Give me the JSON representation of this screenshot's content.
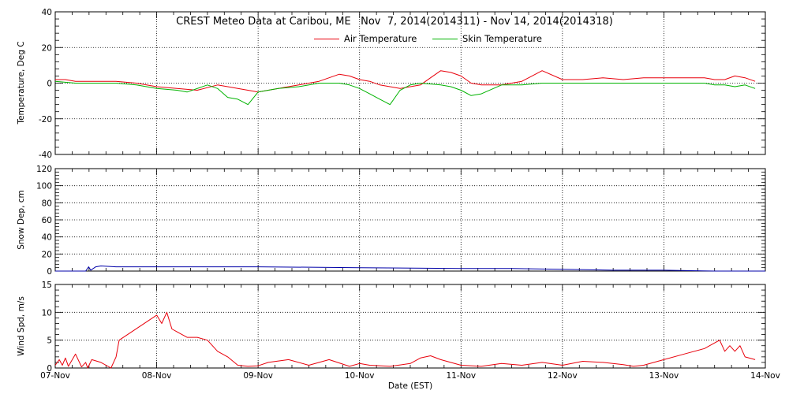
{
  "title": "CREST Meteo Data at Caribou, ME   Nov  7, 2014(2014311) - Nov 14, 2014(2014318)",
  "xlabel": "Date (EST)",
  "x_ticks": [
    "07-Nov",
    "08-Nov",
    "09-Nov",
    "10-Nov",
    "11-Nov",
    "12-Nov",
    "13-Nov",
    "14-Nov"
  ],
  "colors": {
    "air": "#e8000b",
    "skin": "#00b300",
    "snow": "#0000a8",
    "wind": "#e8000b"
  },
  "chart_data": [
    {
      "type": "line",
      "ylabel": "Temperature, Deg C",
      "xlim": [
        0,
        7
      ],
      "ylim": [
        -40,
        40
      ],
      "y_ticks": [
        "-40",
        "-20",
        "0",
        "20",
        "40"
      ],
      "y_tick_values": [
        -40,
        -20,
        0,
        20,
        40
      ],
      "legend": "top-center",
      "grid": true,
      "series": [
        {
          "name": "Air Temperature",
          "color": "#e8000b",
          "x": [
            0,
            0.1,
            0.2,
            0.4,
            0.6,
            0.8,
            1.0,
            1.2,
            1.4,
            1.6,
            1.8,
            2.0,
            2.2,
            2.4,
            2.6,
            2.8,
            2.9,
            3.0,
            3.1,
            3.2,
            3.4,
            3.6,
            3.7,
            3.8,
            3.9,
            4.0,
            4.1,
            4.2,
            4.4,
            4.6,
            4.7,
            4.8,
            5.0,
            5.2,
            5.4,
            5.6,
            5.8,
            6.0,
            6.2,
            6.4,
            6.5,
            6.6,
            6.7,
            6.8,
            6.9
          ],
          "y": [
            2,
            2,
            1,
            1,
            1,
            0,
            -2,
            -3,
            -4,
            -1,
            -3,
            -5,
            -3,
            -1,
            1,
            5,
            4,
            2,
            1,
            -1,
            -3,
            -1,
            3,
            7,
            6,
            4,
            0,
            -1,
            -1,
            1,
            4,
            7,
            2,
            2,
            3,
            2,
            3,
            3,
            3,
            3,
            2,
            2,
            4,
            3,
            1
          ]
        },
        {
          "name": "Skin Temperature",
          "color": "#00b300",
          "x": [
            0,
            0.2,
            0.4,
            0.6,
            0.8,
            1.0,
            1.2,
            1.3,
            1.5,
            1.6,
            1.7,
            1.8,
            1.9,
            2.0,
            2.2,
            2.4,
            2.6,
            2.8,
            2.9,
            3.0,
            3.1,
            3.2,
            3.3,
            3.4,
            3.5,
            3.6,
            3.8,
            3.9,
            4.0,
            4.1,
            4.2,
            4.4,
            4.6,
            4.8,
            5.0,
            5.5,
            6.0,
            6.4,
            6.5,
            6.6,
            6.7,
            6.8,
            6.9
          ],
          "y": [
            1,
            0,
            0,
            0,
            -1,
            -3,
            -4,
            -5,
            -1,
            -3,
            -8,
            -9,
            -12,
            -5,
            -3,
            -2,
            0,
            0,
            -1,
            -3,
            -6,
            -9,
            -12,
            -4,
            -1,
            0,
            -1,
            -2,
            -4,
            -7,
            -6,
            -1,
            -1,
            0,
            0,
            0,
            0,
            0,
            -1,
            -1,
            -2,
            -1,
            -3
          ]
        }
      ]
    },
    {
      "type": "line",
      "ylabel": "Snow Dep, cm",
      "xlim": [
        0,
        7
      ],
      "ylim": [
        0,
        120
      ],
      "y_ticks": [
        "0",
        "20",
        "40",
        "60",
        "80",
        "100",
        "120"
      ],
      "y_tick_values": [
        0,
        20,
        40,
        60,
        80,
        100,
        120
      ],
      "grid": true,
      "series": [
        {
          "name": "Snow Depth",
          "color": "#0000a8",
          "x": [
            0,
            0.3,
            0.33,
            0.35,
            0.4,
            0.45,
            0.6,
            1.0,
            2.0,
            3.0,
            4.0,
            4.5,
            5.0,
            5.5,
            6.0,
            6.5,
            7.0
          ],
          "y": [
            0,
            0,
            5,
            1,
            5,
            6,
            5,
            5,
            5,
            4,
            3,
            3,
            2,
            1,
            1,
            0,
            0
          ]
        }
      ]
    },
    {
      "type": "line",
      "ylabel": "Wind Spd, m/s",
      "xlim": [
        0,
        7
      ],
      "ylim": [
        0,
        15
      ],
      "y_ticks": [
        "0",
        "5",
        "10",
        "15"
      ],
      "y_tick_values": [
        0,
        5,
        10,
        15
      ],
      "grid": true,
      "series": [
        {
          "name": "Wind Speed",
          "color": "#e8000b",
          "x": [
            0,
            0.04,
            0.07,
            0.1,
            0.13,
            0.2,
            0.26,
            0.3,
            0.32,
            0.36,
            0.45,
            0.55,
            0.6,
            0.63,
            1.0,
            1.05,
            1.1,
            1.15,
            1.2,
            1.3,
            1.4,
            1.5,
            1.6,
            1.7,
            1.8,
            1.9,
            2.0,
            2.1,
            2.3,
            2.5,
            2.7,
            2.9,
            3.0,
            3.1,
            3.3,
            3.5,
            3.6,
            3.7,
            3.8,
            4.0,
            4.2,
            4.4,
            4.6,
            4.8,
            5.0,
            5.2,
            5.4,
            5.6,
            5.7,
            5.8,
            6.0,
            6.2,
            6.4,
            6.5,
            6.55,
            6.6,
            6.65,
            6.7,
            6.75,
            6.8,
            6.9
          ],
          "y": [
            0.5,
            1.5,
            0.5,
            1.8,
            0.3,
            2.5,
            0.2,
            1,
            0,
            1.5,
            1,
            0,
            2,
            5,
            9.5,
            8,
            10,
            7,
            6.5,
            5.5,
            5.5,
            5,
            3,
            2,
            0.5,
            0.3,
            0.4,
            1,
            1.5,
            0.5,
            1.5,
            0.3,
            0.8,
            0.5,
            0.3,
            0.8,
            1.8,
            2.2,
            1.5,
            0.5,
            0.3,
            0.8,
            0.5,
            1,
            0.5,
            1.2,
            1,
            0.6,
            0.3,
            0.5,
            1.5,
            2.5,
            3.5,
            4.5,
            5,
            3,
            4,
            3,
            4,
            2,
            1.5
          ]
        }
      ]
    }
  ]
}
